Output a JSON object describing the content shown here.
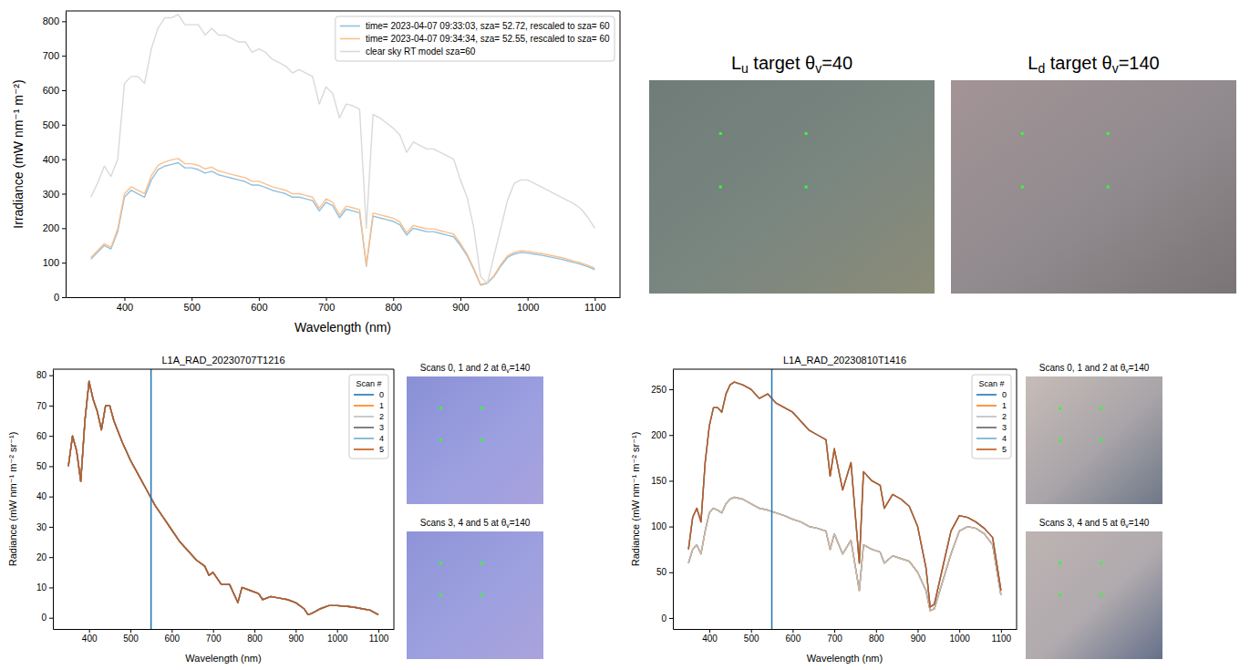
{
  "chart_data": [
    {
      "type": "line",
      "x_label": "Wavelength (nm)",
      "y_label": "Irradiance (mW nm⁻¹ m⁻²)",
      "xlim": [
        312.5,
        1137.5
      ],
      "ylim": [
        0,
        830
      ],
      "xticks": [
        400,
        500,
        600,
        700,
        800,
        900,
        1000,
        1100
      ],
      "yticks": [
        0,
        100,
        200,
        300,
        400,
        500,
        600,
        700,
        800
      ],
      "grid": false,
      "legend": "upper right",
      "x": [
        350,
        360,
        370,
        380,
        390,
        400,
        410,
        420,
        430,
        440,
        450,
        460,
        470,
        480,
        490,
        500,
        510,
        520,
        530,
        540,
        550,
        560,
        570,
        580,
        590,
        600,
        610,
        620,
        630,
        640,
        650,
        660,
        670,
        680,
        690,
        700,
        710,
        720,
        730,
        740,
        750,
        760,
        770,
        780,
        790,
        800,
        810,
        820,
        830,
        840,
        850,
        860,
        870,
        880,
        890,
        900,
        910,
        920,
        930,
        940,
        950,
        960,
        970,
        980,
        990,
        1000,
        1010,
        1020,
        1030,
        1040,
        1050,
        1060,
        1070,
        1080,
        1090,
        1100
      ],
      "series": [
        {
          "name": "time= 2023-04-07 09:33:03, sza= 52.72, rescaled to sza= 60",
          "color": "#8ec1e0",
          "values": [
            110,
            130,
            150,
            140,
            190,
            290,
            310,
            300,
            290,
            340,
            370,
            380,
            385,
            390,
            375,
            375,
            370,
            360,
            365,
            355,
            350,
            345,
            340,
            335,
            325,
            325,
            318,
            310,
            305,
            300,
            290,
            290,
            285,
            280,
            250,
            275,
            265,
            230,
            255,
            250,
            245,
            90,
            235,
            230,
            225,
            220,
            210,
            180,
            200,
            195,
            190,
            190,
            185,
            180,
            175,
            150,
            120,
            80,
            35,
            40,
            60,
            90,
            115,
            125,
            130,
            128,
            125,
            122,
            118,
            114,
            110,
            105,
            100,
            95,
            88,
            80
          ]
        },
        {
          "name": "time= 2023-04-07 09:34:34, sza= 52.55, rescaled to sza= 60",
          "color": "#fdc08a",
          "values": [
            115,
            135,
            155,
            145,
            198,
            300,
            320,
            310,
            300,
            352,
            382,
            392,
            398,
            402,
            387,
            387,
            382,
            372,
            377,
            366,
            361,
            356,
            351,
            346,
            336,
            336,
            328,
            320,
            315,
            310,
            300,
            300,
            295,
            290,
            258,
            285,
            275,
            238,
            264,
            259,
            254,
            94,
            244,
            239,
            234,
            229,
            218,
            187,
            208,
            203,
            198,
            198,
            193,
            188,
            183,
            156,
            125,
            84,
            37,
            42,
            63,
            94,
            120,
            130,
            135,
            133,
            130,
            127,
            123,
            119,
            115,
            110,
            104,
            99,
            92,
            84
          ]
        },
        {
          "name": "clear sky RT model sza=60",
          "color": "#d9d9d9",
          "values": [
            290,
            330,
            380,
            350,
            400,
            620,
            640,
            640,
            620,
            720,
            780,
            810,
            810,
            820,
            790,
            790,
            790,
            760,
            780,
            760,
            760,
            750,
            740,
            740,
            710,
            720,
            710,
            690,
            680,
            670,
            650,
            660,
            650,
            640,
            560,
            610,
            590,
            520,
            560,
            555,
            545,
            200,
            530,
            520,
            505,
            490,
            470,
            420,
            450,
            440,
            430,
            430,
            420,
            410,
            400,
            340,
            290,
            200,
            60,
            40,
            120,
            200,
            280,
            330,
            340,
            340,
            330,
            320,
            310,
            300,
            290,
            280,
            270,
            255,
            230,
            200
          ]
        }
      ]
    },
    {
      "type": "line",
      "title": "L1A_RAD_20230707T1216",
      "x_label": "Wavelength (nm)",
      "y_label": "Radiance (mW nm⁻¹ m⁻² sr⁻¹)",
      "xlim": [
        312.5,
        1137.5
      ],
      "ylim": [
        -3.7,
        82
      ],
      "xticks": [
        400,
        500,
        600,
        700,
        800,
        900,
        1000,
        1100
      ],
      "yticks": [
        0,
        10,
        20,
        30,
        40,
        50,
        60,
        70,
        80
      ],
      "grid": false,
      "legend": "upper right",
      "legend_title": "Scan #",
      "vline": 550,
      "x": [
        350,
        360,
        370,
        380,
        390,
        400,
        410,
        420,
        430,
        440,
        450,
        460,
        480,
        500,
        520,
        540,
        560,
        580,
        600,
        620,
        640,
        660,
        680,
        690,
        700,
        720,
        740,
        760,
        770,
        790,
        810,
        820,
        840,
        860,
        880,
        900,
        920,
        930,
        940,
        960,
        980,
        1000,
        1020,
        1040,
        1060,
        1080,
        1100
      ],
      "series": [
        {
          "name": "0",
          "color": "#1f77b4",
          "values": [
            50,
            60,
            55,
            45,
            65,
            78,
            72,
            68,
            62,
            70,
            70,
            65,
            58,
            52,
            47,
            42,
            37,
            33,
            29,
            25,
            22,
            19,
            17,
            14,
            15,
            11,
            11,
            5,
            10,
            9,
            8,
            6,
            7,
            6.5,
            6,
            5,
            3,
            1,
            1.5,
            3,
            4,
            4,
            3.8,
            3.5,
            3,
            2.5,
            1
          ]
        },
        {
          "name": "1",
          "color": "#ff7f0e",
          "values": [
            50,
            60,
            55,
            45,
            65,
            78,
            72,
            68,
            62,
            70,
            70,
            65,
            58,
            52,
            47,
            42,
            37,
            33,
            29,
            25,
            22,
            19,
            17,
            14,
            15,
            11,
            11,
            5,
            10,
            9,
            8,
            6,
            7,
            6.5,
            6,
            5,
            3,
            1,
            1.5,
            3,
            4,
            4,
            3.8,
            3.5,
            3,
            2.5,
            1
          ]
        },
        {
          "name": "2",
          "color": "#bdbdbd",
          "values": [
            50,
            60,
            55,
            45,
            65,
            78,
            72,
            68,
            62,
            70,
            70,
            65,
            58,
            52,
            47,
            42,
            37,
            33,
            29,
            25,
            22,
            19,
            17,
            14,
            15,
            11,
            11,
            5,
            10,
            9,
            8,
            6,
            7,
            6.5,
            6,
            5,
            3,
            1,
            1.5,
            3,
            4,
            4,
            3.8,
            3.5,
            3,
            2.5,
            1
          ]
        },
        {
          "name": "3",
          "color": "#636363",
          "values": [
            50,
            60,
            55,
            45,
            65,
            78,
            72,
            68,
            62,
            70,
            70,
            65,
            58,
            52,
            47,
            42,
            37,
            33,
            29,
            25,
            22,
            19,
            17,
            14,
            15,
            11,
            11,
            5,
            10,
            9,
            8,
            6,
            7,
            6.5,
            6,
            5,
            3,
            1,
            1.5,
            3,
            4,
            4,
            3.8,
            3.5,
            3,
            2.5,
            1
          ]
        },
        {
          "name": "4",
          "color": "#6baed6",
          "values": [
            50,
            60,
            55,
            45,
            65,
            78,
            72,
            68,
            62,
            70,
            70,
            65,
            58,
            52,
            47,
            42,
            37,
            33,
            29,
            25,
            22,
            19,
            17,
            14,
            15,
            11,
            11,
            5,
            10,
            9,
            8,
            6,
            7,
            6.5,
            6,
            5,
            3,
            1,
            1.5,
            3,
            4,
            4,
            3.8,
            3.5,
            3,
            2.5,
            1
          ]
        },
        {
          "name": "5",
          "color": "#c0571b",
          "values": [
            50,
            60,
            55,
            45,
            65,
            78,
            72,
            68,
            62,
            70,
            70,
            65,
            58,
            52,
            47,
            42,
            37,
            33,
            29,
            25,
            22,
            19,
            17,
            14,
            15,
            11,
            11,
            5,
            10,
            9,
            8,
            6,
            7,
            6.5,
            6,
            5,
            3,
            1,
            1.5,
            3,
            4,
            4,
            3.8,
            3.5,
            3,
            2.5,
            1
          ]
        }
      ]
    },
    {
      "type": "line",
      "title": "L1A_RAD_20230810T1416",
      "x_label": "Wavelength (nm)",
      "y_label": "Radiance (mW nm⁻¹ m⁻² sr⁻¹)",
      "xlim": [
        312.5,
        1137.5
      ],
      "ylim": [
        -12,
        272
      ],
      "xticks": [
        400,
        500,
        600,
        700,
        800,
        900,
        1000,
        1100
      ],
      "yticks": [
        0,
        50,
        100,
        150,
        200,
        250
      ],
      "grid": false,
      "legend": "upper right",
      "legend_title": "Scan #",
      "vline": 550,
      "x": [
        350,
        360,
        370,
        380,
        390,
        400,
        410,
        420,
        430,
        440,
        450,
        460,
        480,
        500,
        520,
        540,
        560,
        580,
        600,
        620,
        640,
        660,
        680,
        690,
        700,
        720,
        740,
        760,
        770,
        790,
        810,
        820,
        840,
        860,
        880,
        900,
        920,
        930,
        940,
        960,
        980,
        1000,
        1020,
        1040,
        1060,
        1080,
        1100
      ],
      "series": [
        {
          "name": "0",
          "color": "#1f77b4",
          "values": [
            60,
            75,
            80,
            70,
            95,
            115,
            120,
            118,
            115,
            125,
            130,
            132,
            130,
            125,
            120,
            118,
            115,
            112,
            108,
            105,
            100,
            98,
            95,
            75,
            92,
            70,
            85,
            30,
            80,
            75,
            72,
            60,
            68,
            65,
            62,
            50,
            30,
            8,
            10,
            40,
            70,
            95,
            100,
            98,
            92,
            80,
            25
          ]
        },
        {
          "name": "1",
          "color": "#ff7f0e",
          "values": [
            60,
            75,
            80,
            70,
            95,
            115,
            120,
            118,
            115,
            125,
            130,
            132,
            130,
            125,
            120,
            118,
            115,
            112,
            108,
            105,
            100,
            98,
            95,
            75,
            92,
            70,
            85,
            30,
            80,
            75,
            72,
            60,
            68,
            65,
            62,
            50,
            30,
            8,
            10,
            40,
            70,
            95,
            100,
            98,
            92,
            80,
            25
          ]
        },
        {
          "name": "2",
          "color": "#bdbdbd",
          "values": [
            60,
            75,
            80,
            70,
            95,
            115,
            120,
            118,
            115,
            125,
            130,
            132,
            130,
            125,
            120,
            118,
            115,
            112,
            108,
            105,
            100,
            98,
            95,
            75,
            92,
            70,
            85,
            30,
            80,
            75,
            72,
            60,
            68,
            65,
            62,
            50,
            30,
            8,
            10,
            40,
            70,
            95,
            100,
            98,
            92,
            80,
            25
          ]
        },
        {
          "name": "3",
          "color": "#636363",
          "values": [
            75,
            110,
            120,
            105,
            170,
            210,
            230,
            230,
            225,
            245,
            255,
            258,
            255,
            250,
            240,
            245,
            235,
            230,
            225,
            215,
            205,
            200,
            195,
            155,
            185,
            140,
            170,
            60,
            160,
            150,
            145,
            120,
            135,
            130,
            122,
            100,
            55,
            12,
            15,
            55,
            95,
            112,
            110,
            105,
            98,
            88,
            30
          ]
        },
        {
          "name": "4",
          "color": "#6baed6",
          "values": [
            75,
            110,
            120,
            105,
            170,
            210,
            230,
            230,
            225,
            245,
            255,
            258,
            255,
            250,
            240,
            245,
            235,
            230,
            225,
            215,
            205,
            200,
            195,
            155,
            185,
            140,
            170,
            60,
            160,
            150,
            145,
            120,
            135,
            130,
            122,
            100,
            55,
            12,
            15,
            55,
            95,
            112,
            110,
            105,
            98,
            88,
            30
          ]
        },
        {
          "name": "5",
          "color": "#c0571b",
          "values": [
            75,
            110,
            120,
            105,
            170,
            210,
            230,
            230,
            225,
            245,
            255,
            258,
            255,
            250,
            240,
            245,
            235,
            230,
            225,
            215,
            205,
            200,
            195,
            155,
            185,
            140,
            170,
            60,
            160,
            150,
            145,
            120,
            135,
            130,
            122,
            100,
            55,
            12,
            15,
            55,
            95,
            112,
            110,
            105,
            98,
            88,
            30
          ]
        }
      ]
    }
  ],
  "images": [
    {
      "title_parts": [
        "L",
        "u",
        " target θ",
        "v",
        "=40"
      ]
    },
    {
      "title_parts": [
        "L",
        "d",
        " target θ",
        "v",
        "=140"
      ]
    },
    {
      "title_parts": [
        "Scans 0, 1 and 2 at θ",
        "v",
        "=140"
      ]
    },
    {
      "title_parts": [
        "Scans 3, 4 and 5 at θ",
        "v",
        "=140"
      ]
    },
    {
      "title_parts": [
        "Scans 0, 1 and 2 at θ",
        "v",
        "=140"
      ]
    },
    {
      "title_parts": [
        "Scans 3, 4 and 5 at θ",
        "v",
        "=140"
      ]
    }
  ]
}
